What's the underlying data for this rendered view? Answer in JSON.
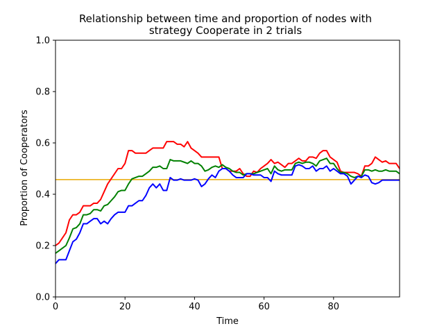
{
  "chart_data": {
    "type": "line",
    "title_line1": "Relationship between time and proportion of nodes with",
    "title_line2": "strategy Cooperate in 2 trials",
    "xlabel": "Time",
    "ylabel": "Proportion of Cooperators",
    "xlim": [
      0,
      99
    ],
    "ylim": [
      0.0,
      1.0
    ],
    "xticks": [
      0,
      20,
      40,
      60,
      80
    ],
    "xtick_labels": [
      "0",
      "20",
      "40",
      "60",
      "80"
    ],
    "yticks": [
      0.0,
      0.2,
      0.4,
      0.6,
      0.8,
      1.0
    ],
    "ytick_labels": [
      "0.0",
      "0.2",
      "0.4",
      "0.6",
      "0.8",
      "1.0"
    ],
    "grid": false,
    "hline": {
      "y": 0.457,
      "color": "#e8a800"
    },
    "series": [
      {
        "color": "#ff0000",
        "values": [
          0.2,
          0.21,
          0.23,
          0.25,
          0.3,
          0.32,
          0.32,
          0.33,
          0.355,
          0.355,
          0.355,
          0.365,
          0.365,
          0.38,
          0.41,
          0.44,
          0.46,
          0.48,
          0.5,
          0.5,
          0.52,
          0.57,
          0.57,
          0.56,
          0.56,
          0.56,
          0.56,
          0.57,
          0.58,
          0.58,
          0.58,
          0.58,
          0.605,
          0.605,
          0.605,
          0.595,
          0.595,
          0.585,
          0.605,
          0.58,
          0.57,
          0.56,
          0.545,
          0.545,
          0.545,
          0.545,
          0.545,
          0.545,
          0.5,
          0.5,
          0.49,
          0.49,
          0.49,
          0.5,
          0.48,
          0.47,
          0.47,
          0.49,
          0.485,
          0.5,
          0.51,
          0.52,
          0.535,
          0.52,
          0.525,
          0.515,
          0.505,
          0.52,
          0.52,
          0.53,
          0.54,
          0.53,
          0.53,
          0.545,
          0.545,
          0.54,
          0.56,
          0.57,
          0.57,
          0.545,
          0.535,
          0.525,
          0.49,
          0.485,
          0.485,
          0.485,
          0.485,
          0.48,
          0.47,
          0.51,
          0.51,
          0.52,
          0.545,
          0.535,
          0.525,
          0.53,
          0.52,
          0.52,
          0.52,
          0.5
        ]
      },
      {
        "color": "#008000",
        "values": [
          0.17,
          0.18,
          0.19,
          0.2,
          0.23,
          0.265,
          0.27,
          0.285,
          0.32,
          0.32,
          0.325,
          0.34,
          0.34,
          0.335,
          0.355,
          0.36,
          0.375,
          0.39,
          0.41,
          0.415,
          0.415,
          0.44,
          0.46,
          0.465,
          0.47,
          0.47,
          0.48,
          0.49,
          0.505,
          0.505,
          0.51,
          0.5,
          0.5,
          0.535,
          0.53,
          0.53,
          0.53,
          0.525,
          0.52,
          0.53,
          0.52,
          0.52,
          0.51,
          0.49,
          0.495,
          0.505,
          0.51,
          0.505,
          0.515,
          0.505,
          0.5,
          0.49,
          0.485,
          0.485,
          0.475,
          0.48,
          0.48,
          0.48,
          0.485,
          0.49,
          0.495,
          0.5,
          0.48,
          0.51,
          0.495,
          0.49,
          0.495,
          0.495,
          0.495,
          0.52,
          0.525,
          0.52,
          0.525,
          0.525,
          0.52,
          0.51,
          0.53,
          0.535,
          0.54,
          0.52,
          0.52,
          0.5,
          0.485,
          0.485,
          0.48,
          0.47,
          0.465,
          0.47,
          0.47,
          0.495,
          0.495,
          0.49,
          0.495,
          0.49,
          0.49,
          0.495,
          0.49,
          0.49,
          0.49,
          0.48
        ]
      },
      {
        "color": "#0000ff",
        "values": [
          0.13,
          0.145,
          0.145,
          0.145,
          0.18,
          0.215,
          0.225,
          0.25,
          0.285,
          0.285,
          0.295,
          0.305,
          0.305,
          0.285,
          0.295,
          0.285,
          0.305,
          0.32,
          0.33,
          0.33,
          0.33,
          0.355,
          0.355,
          0.365,
          0.375,
          0.375,
          0.395,
          0.425,
          0.44,
          0.425,
          0.44,
          0.415,
          0.415,
          0.465,
          0.455,
          0.455,
          0.46,
          0.455,
          0.455,
          0.455,
          0.46,
          0.455,
          0.43,
          0.44,
          0.46,
          0.475,
          0.465,
          0.49,
          0.5,
          0.5,
          0.49,
          0.475,
          0.465,
          0.465,
          0.465,
          0.48,
          0.48,
          0.475,
          0.475,
          0.475,
          0.465,
          0.465,
          0.45,
          0.49,
          0.48,
          0.475,
          0.475,
          0.475,
          0.475,
          0.51,
          0.515,
          0.51,
          0.5,
          0.5,
          0.51,
          0.49,
          0.5,
          0.5,
          0.51,
          0.49,
          0.5,
          0.49,
          0.48,
          0.48,
          0.47,
          0.44,
          0.455,
          0.47,
          0.465,
          0.475,
          0.47,
          0.445,
          0.44,
          0.445,
          0.455,
          0.455,
          0.455,
          0.455,
          0.455,
          0.455
        ]
      }
    ]
  }
}
